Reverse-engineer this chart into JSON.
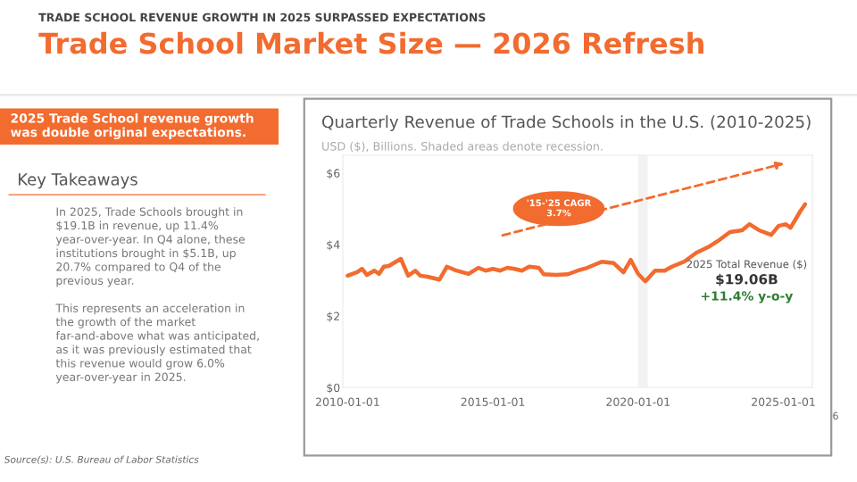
{
  "chart_data": {
    "type": "line",
    "title": "Quarterly Revenue of Trade Schools in the U.S. (2010-2025)",
    "subtitle": "USD ($), Billions. Shaded areas denote recession.",
    "annotations": [
      "TRADE SCHOOL REVENUE GROWTH IN 2025 SURPASSED EXPECTATIONS",
      "Trade School Market Size — 2026 Refresh",
      "2025 Trade School revenue growth was double original expectations.",
      "Key Takeaways",
      "In 2025, Trade Schools brought in $19.1B in revenue, up 11.4% year-over-year. In Q4 alone, these institutions brought in $5.1B, up 20.7% compared to Q4 of the previous year.",
      "This represents an acceleration in the growth of the market far-and-above what was anticipated, as it was previously estimated that this revenue would grow 6.0% year-over-year in 2025.",
      "Source(s): U.S. Bureau of Labor Statistics",
      "6",
      "'15-'25 CAGR\n3.7%",
      "2025 Total Revenue ($)",
      "$19.06B",
      "+11.4% y-o-y"
    ],
    "series": [
      {
        "color": "#f26b2f",
        "line_style": "solid",
        "x": [
          "2010-01",
          "2010-05",
          "2010-07",
          "2010-09",
          "2010-12",
          "2011-02",
          "2011-04",
          "2011-06",
          "2011-11",
          "2012-02",
          "2012-05",
          "2012-07",
          "2012-10",
          "2013-03",
          "2013-06",
          "2013-10",
          "2014-03",
          "2014-07",
          "2014-10",
          "2015-01",
          "2015-04",
          "2015-07",
          "2015-10",
          "2016-01",
          "2016-04",
          "2016-08",
          "2016-10",
          "2017-03",
          "2017-08",
          "2017-12",
          "2018-04",
          "2018-10",
          "2019-03",
          "2019-07",
          "2019-10",
          "2020-01",
          "2020-04",
          "2020-08",
          "2020-12",
          "2021-03",
          "2021-08",
          "2022-01",
          "2022-06",
          "2022-10",
          "2023-03",
          "2023-08",
          "2023-11",
          "2024-03",
          "2024-08",
          "2024-11",
          "2025-02",
          "2025-04",
          "2025-08",
          "2025-10"
        ],
        "values": [
          3.13,
          3.23,
          3.32,
          3.15,
          3.27,
          3.18,
          3.38,
          3.4,
          3.6,
          3.13,
          3.27,
          3.13,
          3.1,
          3.02,
          3.38,
          3.27,
          3.18,
          3.35,
          3.27,
          3.32,
          3.27,
          3.35,
          3.32,
          3.27,
          3.38,
          3.35,
          3.17,
          3.15,
          3.17,
          3.27,
          3.35,
          3.52,
          3.48,
          3.22,
          3.57,
          3.18,
          2.97,
          3.27,
          3.27,
          3.38,
          3.52,
          3.77,
          3.93,
          4.1,
          4.35,
          4.4,
          4.57,
          4.4,
          4.27,
          4.52,
          4.57,
          4.47,
          4.93,
          5.13
        ]
      }
    ],
    "bands": [
      {
        "axis": "x",
        "from": "2020-01",
        "to": "2020-05",
        "color": "#f2f2f2"
      }
    ],
    "xlim": [
      "2009-11",
      "2026-01"
    ],
    "ylim": [
      0,
      6.5
    ],
    "xticks": [
      {
        "value": "2010-01-01",
        "label": "2010-01-01"
      },
      {
        "value": "2015-01-01",
        "label": "2015-01-01"
      },
      {
        "value": "2020-01-01",
        "label": "2020-01-01"
      },
      {
        "value": "2025-01-01",
        "label": "2025-01-01"
      }
    ],
    "yticks": [
      {
        "value": 0,
        "label": "$0"
      },
      {
        "value": 2,
        "label": "$2"
      },
      {
        "value": 4,
        "label": "$4"
      },
      {
        "value": 6,
        "label": "$6"
      }
    ],
    "grid": false,
    "legend": false,
    "marker": "none"
  }
}
